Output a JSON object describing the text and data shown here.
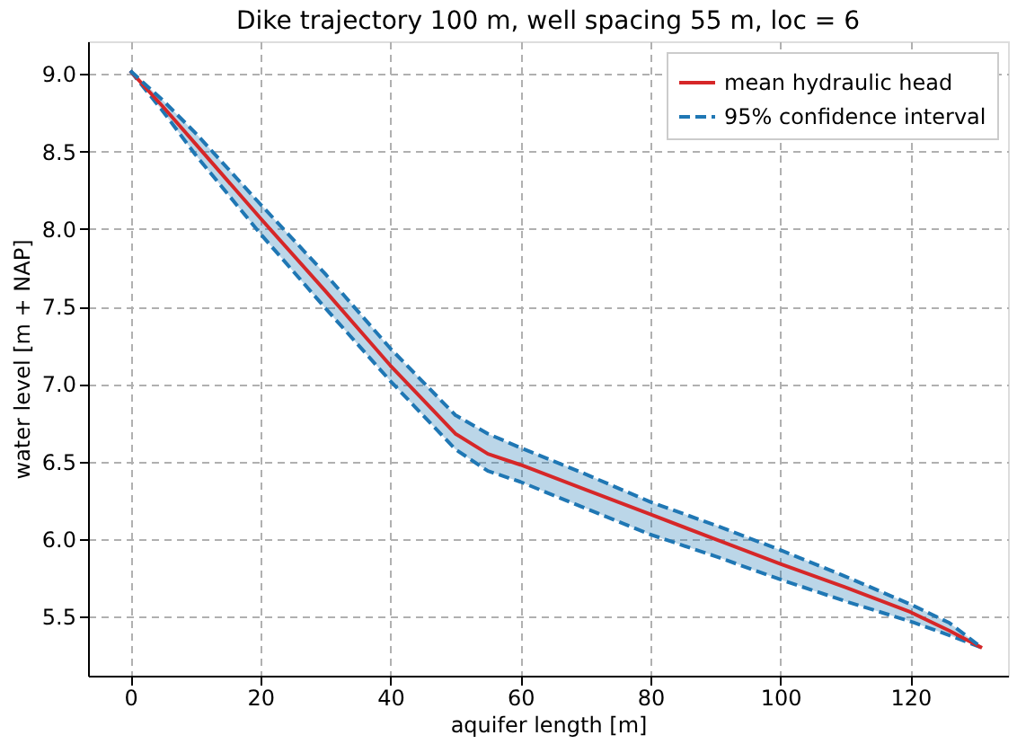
{
  "chart_data": {
    "type": "line",
    "title": "Dike trajectory 100 m, well spacing 55 m, loc = 6",
    "xlabel": "aquifer length [m]",
    "ylabel": "water level [m + NAP]",
    "x": [
      0,
      5,
      10,
      20,
      30,
      40,
      50,
      55,
      60,
      70,
      80,
      90,
      100,
      110,
      120,
      126,
      131
    ],
    "series": [
      {
        "name": "mean hydraulic head",
        "color": "#d62728",
        "line_style": "solid",
        "values": [
          9.02,
          8.79,
          8.55,
          8.07,
          7.6,
          7.12,
          6.68,
          6.55,
          6.48,
          6.32,
          6.16,
          6.0,
          5.84,
          5.69,
          5.53,
          5.41,
          5.3
        ]
      },
      {
        "name": "95% confidence interval",
        "color": "#1f77b4",
        "line_style": "dashed",
        "values": [
          9.02,
          8.83,
          8.62,
          8.16,
          7.71,
          7.23,
          6.8,
          6.68,
          6.59,
          6.42,
          6.24,
          6.09,
          5.93,
          5.76,
          5.58,
          5.46,
          5.3
        ],
        "lower": [
          9.02,
          8.76,
          8.48,
          7.97,
          7.49,
          7.02,
          6.58,
          6.44,
          6.37,
          6.2,
          6.03,
          5.89,
          5.74,
          5.6,
          5.47,
          5.38,
          5.3
        ],
        "upper": [
          9.02,
          8.83,
          8.62,
          8.16,
          7.71,
          7.23,
          6.8,
          6.68,
          6.59,
          6.42,
          6.24,
          6.09,
          5.93,
          5.76,
          5.58,
          5.46,
          5.3
        ]
      }
    ],
    "xlim": [
      -6.5,
      135
    ],
    "xticks": [
      0,
      20,
      40,
      60,
      80,
      100,
      120
    ],
    "ylim": [
      5.12,
      9.21
    ],
    "yticks": [
      5.5,
      {
        "value": 6,
        "label": "6.0"
      },
      6.5,
      {
        "value": 7,
        "label": "7.0"
      },
      7.5,
      {
        "value": 8,
        "label": "8.0"
      },
      8.5,
      {
        "value": 9,
        "label": "9.0"
      }
    ],
    "grid": true,
    "legend": "top right",
    "marker": "none"
  }
}
